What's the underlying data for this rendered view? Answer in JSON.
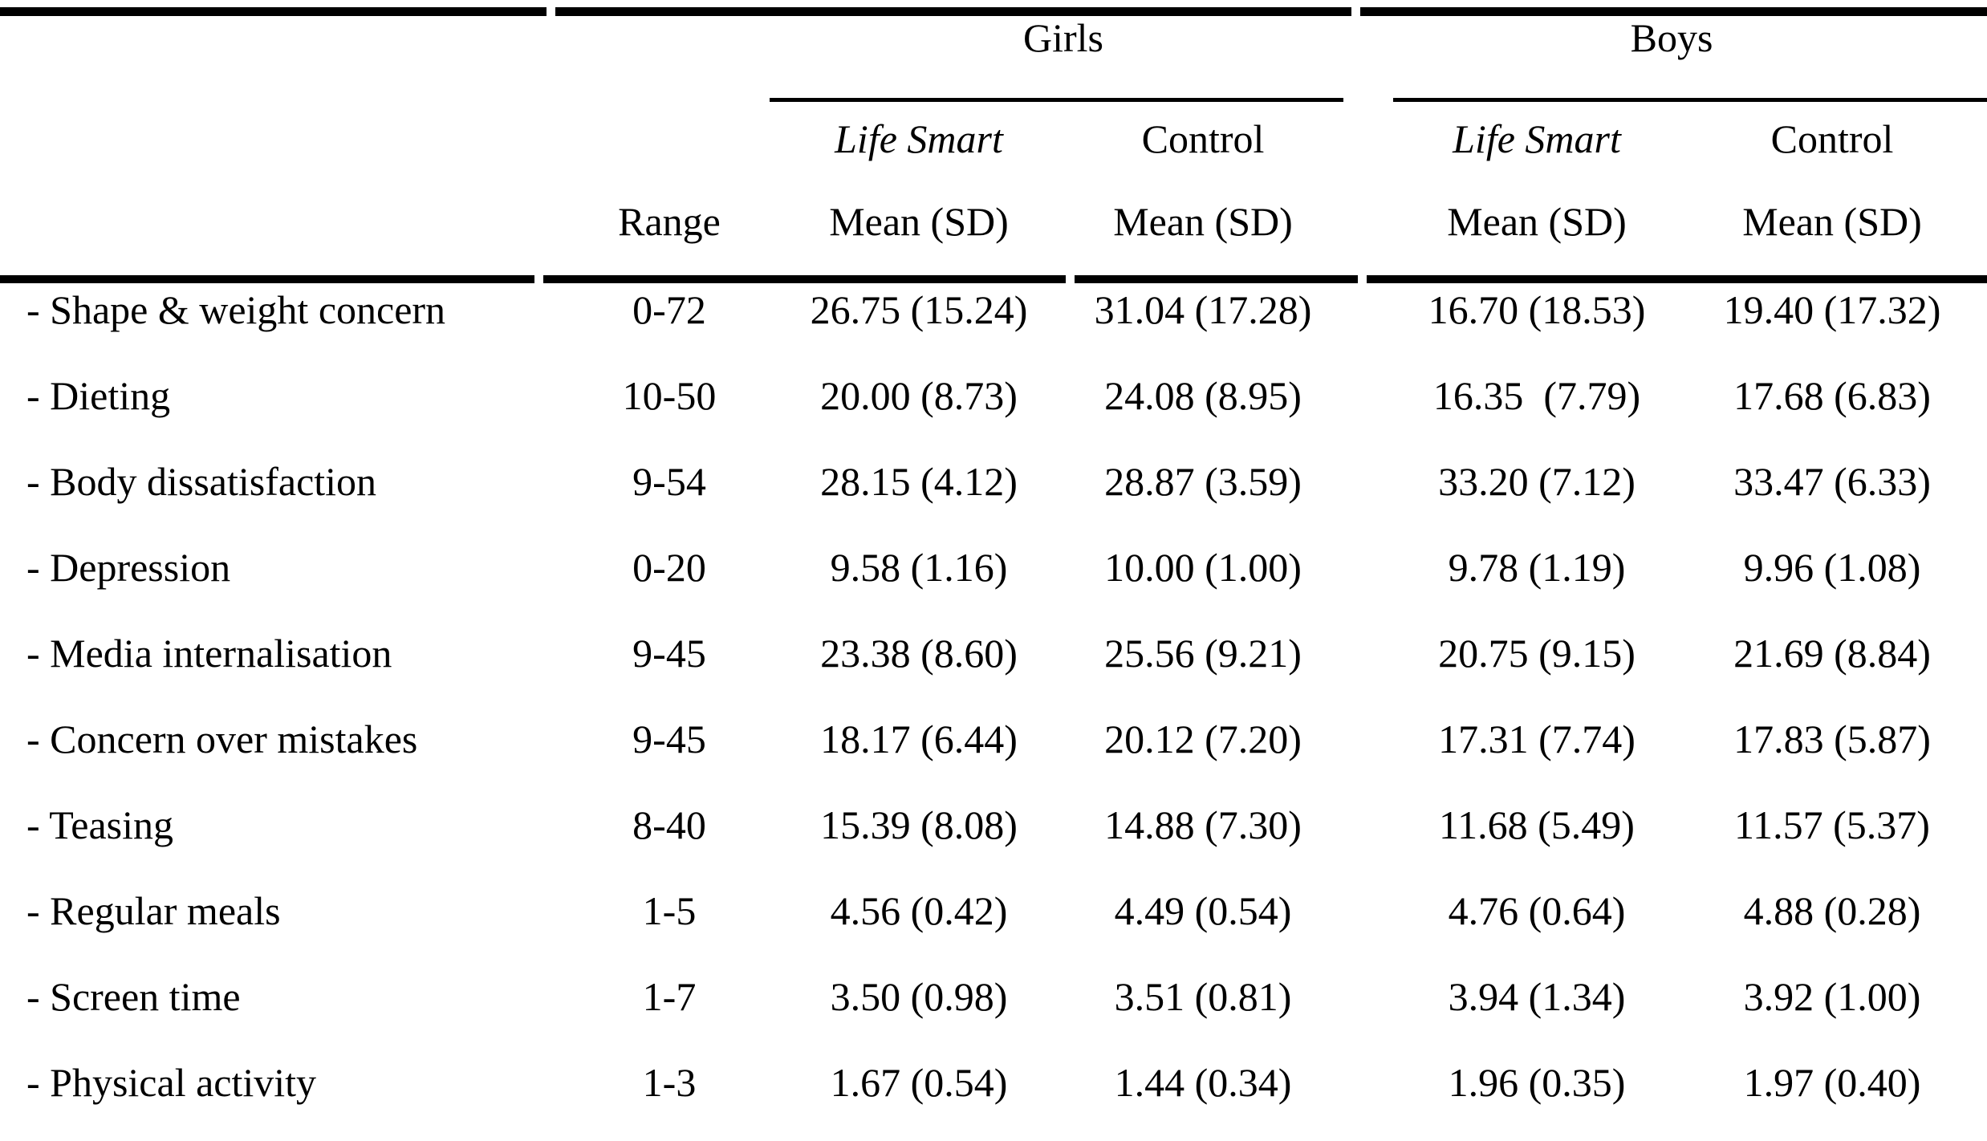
{
  "page": {
    "background_color": "#ffffff",
    "text_color": "#000000",
    "rule_color": "#000000"
  },
  "table": {
    "group_headers": {
      "girls": "Girls",
      "boys": "Boys"
    },
    "condition_headers": {
      "girls_intervention": "Life Smart",
      "girls_control": "Control",
      "boys_intervention": "Life Smart",
      "boys_control": "Control"
    },
    "measure_headers": {
      "range": "Range",
      "girls_intervention": "Mean (SD)",
      "girls_control": "Mean (SD)",
      "boys_intervention": "Mean (SD)",
      "boys_control": "Mean (SD)"
    },
    "rows": [
      {
        "label": "- Shape & weight concern",
        "range": "0-72",
        "values": [
          "26.75 (15.24)",
          "31.04 (17.28)",
          "16.70 (18.53)",
          "19.40 (17.32)"
        ]
      },
      {
        "label": "- Dieting",
        "range": "10-50",
        "values": [
          "20.00 (8.73)",
          "24.08 (8.95)",
          "16.35  (7.79)",
          "17.68 (6.83)"
        ]
      },
      {
        "label": "- Body dissatisfaction",
        "range": "9-54",
        "values": [
          "28.15 (4.12)",
          "28.87 (3.59)",
          "33.20 (7.12)",
          "33.47 (6.33)"
        ]
      },
      {
        "label": "- Depression",
        "range": "0-20",
        "values": [
          "9.58 (1.16)",
          "10.00 (1.00)",
          "9.78 (1.19)",
          "9.96 (1.08)"
        ]
      },
      {
        "label": "- Media internalisation",
        "range": "9-45",
        "values": [
          "23.38 (8.60)",
          "25.56 (9.21)",
          "20.75 (9.15)",
          "21.69 (8.84)"
        ]
      },
      {
        "label": "- Concern over mistakes",
        "range": "9-45",
        "values": [
          "18.17 (6.44)",
          "20.12 (7.20)",
          "17.31 (7.74)",
          "17.83 (5.87)"
        ]
      },
      {
        "label": "- Teasing",
        "range": "8-40",
        "values": [
          "15.39 (8.08)",
          "14.88 (7.30)",
          "11.68 (5.49)",
          "11.57 (5.37)"
        ]
      },
      {
        "label": "- Regular meals",
        "range": "1-5",
        "values": [
          "4.56 (0.42)",
          "4.49 (0.54)",
          "4.76 (0.64)",
          "4.88 (0.28)"
        ]
      },
      {
        "label": "- Screen time",
        "range": "1-7",
        "values": [
          "3.50 (0.98)",
          "3.51 (0.81)",
          "3.94 (1.34)",
          "3.92 (1.00)"
        ]
      },
      {
        "label": "- Physical activity",
        "range": "1-3",
        "values": [
          "1.67 (0.54)",
          "1.44 (0.34)",
          "1.96 (0.35)",
          "1.97 (0.40)"
        ]
      }
    ]
  }
}
